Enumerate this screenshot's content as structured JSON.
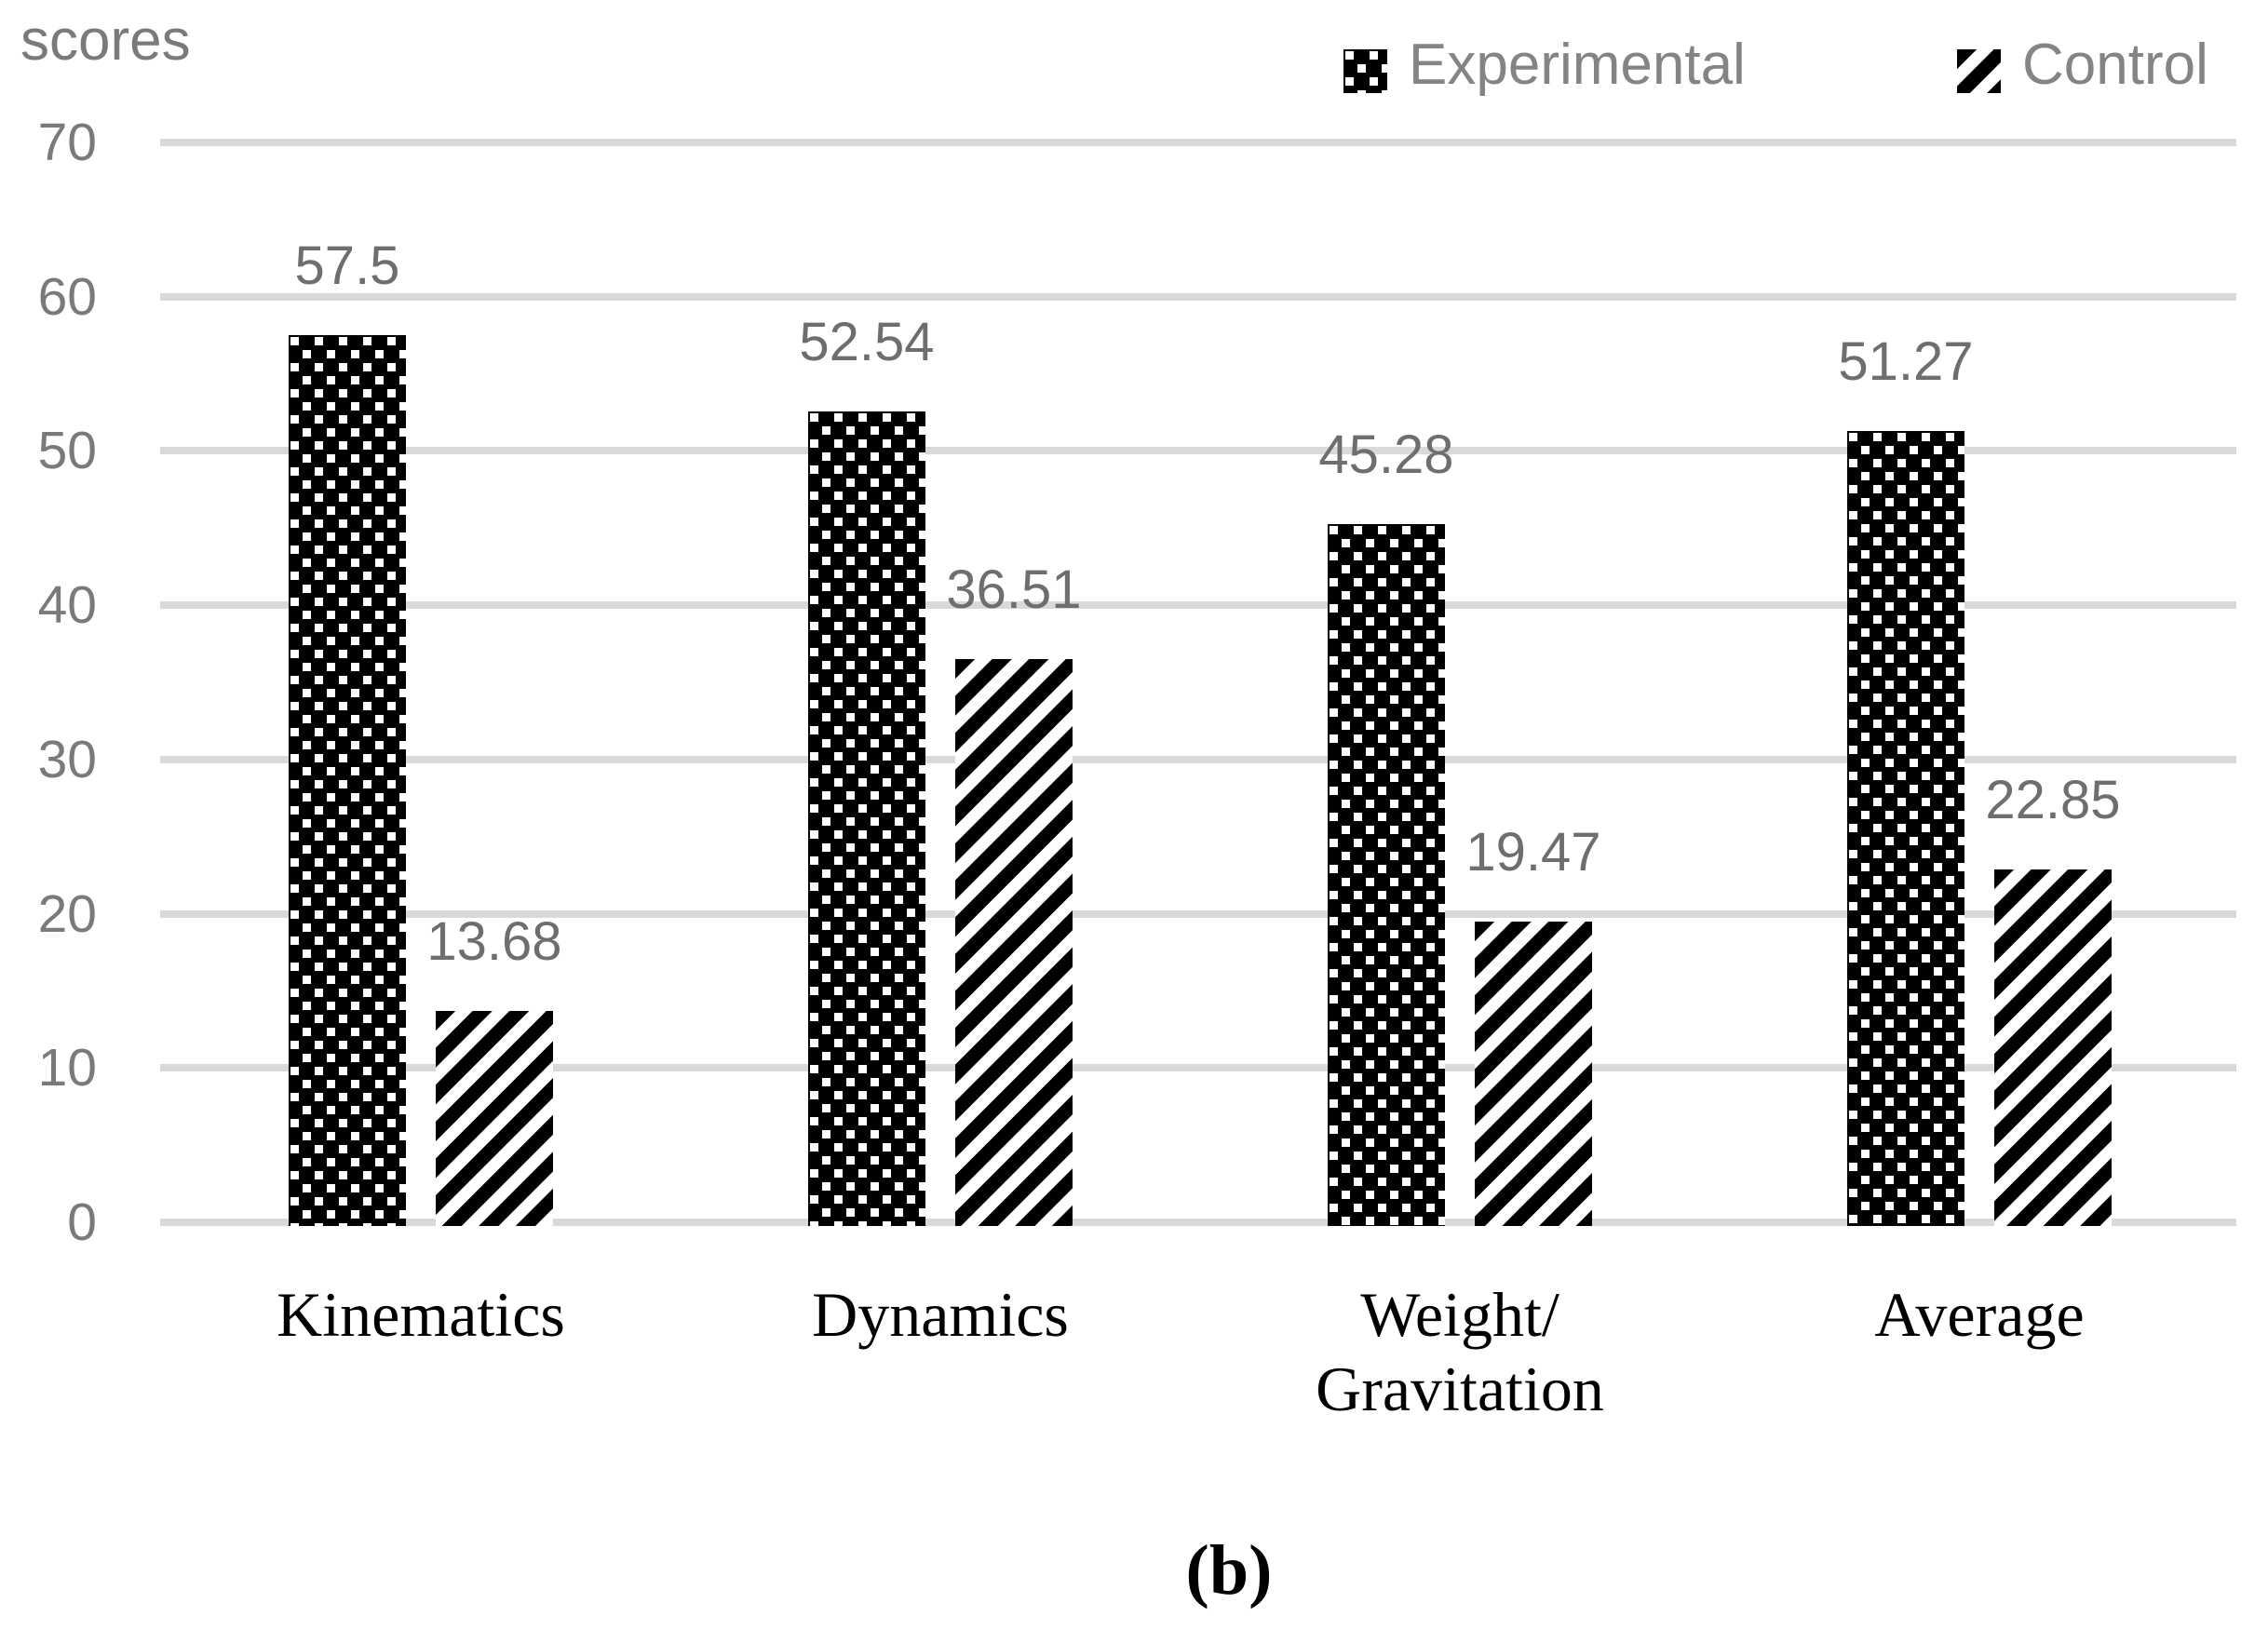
{
  "figure": {
    "y_axis_title": "scores",
    "caption": "(b)"
  },
  "legend": {
    "items": [
      {
        "label": "Experimental",
        "pattern": "dots"
      },
      {
        "label": "Control",
        "pattern": "stripes"
      }
    ],
    "position": "top-right"
  },
  "colors": {
    "background": "#ffffff",
    "bar_black": "#000000",
    "pattern_white": "#ffffff",
    "gridline": "#d9d9d9",
    "axis_text_gray": "#7a7a7a",
    "legend_text_gray": "#848484",
    "data_label_gray": "#6e6e6e",
    "category_text": "#000000"
  },
  "chart_data": {
    "type": "bar",
    "title": "",
    "xlabel": "",
    "ylabel": "scores",
    "categories": [
      "Kinematics",
      "Dynamics",
      "Weight/Gravitation",
      "Average"
    ],
    "category_lines": [
      [
        "Kinematics"
      ],
      [
        "Dynamics"
      ],
      [
        "Weight/",
        "Gravitation"
      ],
      [
        "Average"
      ]
    ],
    "series": [
      {
        "name": "Experimental",
        "pattern": "dots",
        "values": [
          57.5,
          52.54,
          45.28,
          51.27
        ]
      },
      {
        "name": "Control",
        "pattern": "stripes",
        "values": [
          13.68,
          36.51,
          19.47,
          22.85
        ]
      }
    ],
    "data_labels": [
      [
        "57.5",
        "52.54",
        "45.28",
        "51.27"
      ],
      [
        "13.68",
        "36.51",
        "19.47",
        "22.85"
      ]
    ],
    "ylim": [
      0,
      70
    ],
    "yticks": [
      0,
      10,
      20,
      30,
      40,
      50,
      60,
      70
    ],
    "grid": true,
    "legend_position": "top-right"
  }
}
